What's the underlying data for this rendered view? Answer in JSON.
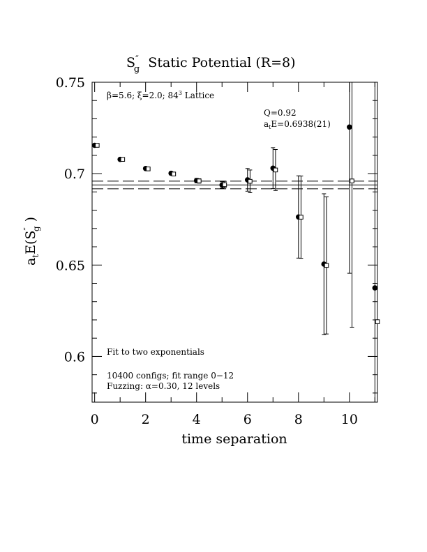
{
  "chart_data": {
    "type": "scatter",
    "title_main": "S",
    "title_sup": "″",
    "title_sub": "g",
    "title_rest": "  Static Potential (R=8)",
    "xlabel": "time separation",
    "ylabel_main": "a",
    "ylabel_sub": "t",
    "ylabel_mid": "E(S",
    "ylabel_sup": "″",
    "ylabel_sub2": "g",
    "ylabel_end": " )",
    "xlim": [
      -0.1,
      11.1
    ],
    "ylim": [
      0.575,
      0.75
    ],
    "xticks": [
      0,
      2,
      4,
      6,
      8,
      10
    ],
    "xtick_labels": [
      "0",
      "2",
      "4",
      "6",
      "8",
      "10"
    ],
    "yticks": [
      0.6,
      0.65,
      0.7,
      0.75
    ],
    "ytick_labels": [
      "0.6",
      "0.65",
      "0.7",
      "0.75"
    ],
    "annotations": {
      "lattice_beta": "β=5.6; ξ=2.0; 84",
      "lattice_exp": "3",
      "lattice_end": " Lattice",
      "q": "Q=0.92",
      "fit_a": "a",
      "fit_sub": "t",
      "fit_rest": "E=0.6938(21)",
      "fit_type": "Fit to two exponentials",
      "configs": "10400 configs; fit range 0−12",
      "fuzz": "Fuzzing: α=0.30, 12 levels"
    },
    "fit": {
      "value": 0.6938,
      "error": 0.0021
    },
    "series": [
      {
        "marker": "filled-circle",
        "x": [
          0,
          1,
          2,
          3,
          4,
          5,
          6,
          7,
          8,
          9,
          10,
          11
        ],
        "y": [
          0.7155,
          0.7078,
          0.7028,
          0.7002,
          0.6962,
          0.6938,
          0.6966,
          0.703,
          0.6763,
          0.6505,
          0.7255,
          0.6375
        ],
        "err": [
          0.0004,
          0.0005,
          0.0006,
          0.0008,
          0.0012,
          0.0018,
          0.0062,
          0.0112,
          0.0225,
          0.0385,
          0.08,
          0.17
        ]
      },
      {
        "marker": "open-square",
        "x": [
          0.1,
          1.1,
          2.1,
          3.1,
          4.1,
          5.1,
          6.1,
          7.1,
          8.1,
          9.1,
          10.1,
          11.1
        ],
        "y": [
          0.7155,
          0.7078,
          0.7026,
          0.6998,
          0.696,
          0.694,
          0.6958,
          0.702,
          0.6762,
          0.6498,
          0.696,
          0.619
        ],
        "err": [
          0.0004,
          0.0005,
          0.0006,
          0.0008,
          0.0012,
          0.0018,
          0.0062,
          0.0112,
          0.0225,
          0.0375,
          0.08,
          0.17
        ]
      }
    ]
  }
}
